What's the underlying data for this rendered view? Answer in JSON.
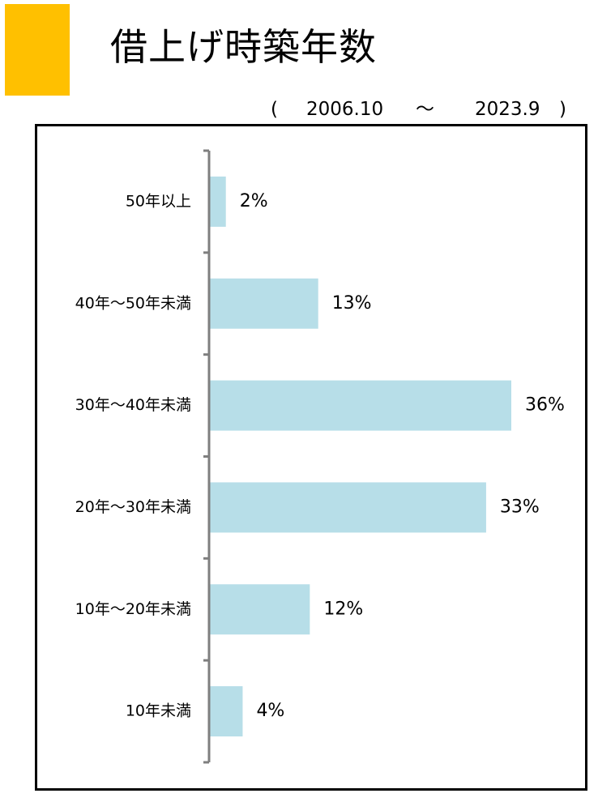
{
  "header": {
    "title": "借上げ時築年数",
    "period_open": "(",
    "period_start": "2006.10",
    "period_separator": "～",
    "period_end": "2023.9",
    "period_close": ")"
  },
  "colors": {
    "accent": "#FFC000",
    "bar": "#B7DEE8",
    "axis": "#7F7F7F",
    "frame": "#000000"
  },
  "chart_data": {
    "type": "bar",
    "orientation": "horizontal",
    "categories": [
      "50年以上",
      "40年～50年未満",
      "30年～40年未満",
      "20年～30年未満",
      "10年～20年未満",
      "10年未満"
    ],
    "values": [
      2,
      13,
      36,
      33,
      12,
      4
    ],
    "value_labels": [
      "2%",
      "13%",
      "36%",
      "33%",
      "12%",
      "4%"
    ],
    "unit": "%",
    "xlim": [
      0,
      36
    ],
    "title": "",
    "xlabel": "",
    "ylabel": "",
    "grid": false,
    "legend": false
  }
}
